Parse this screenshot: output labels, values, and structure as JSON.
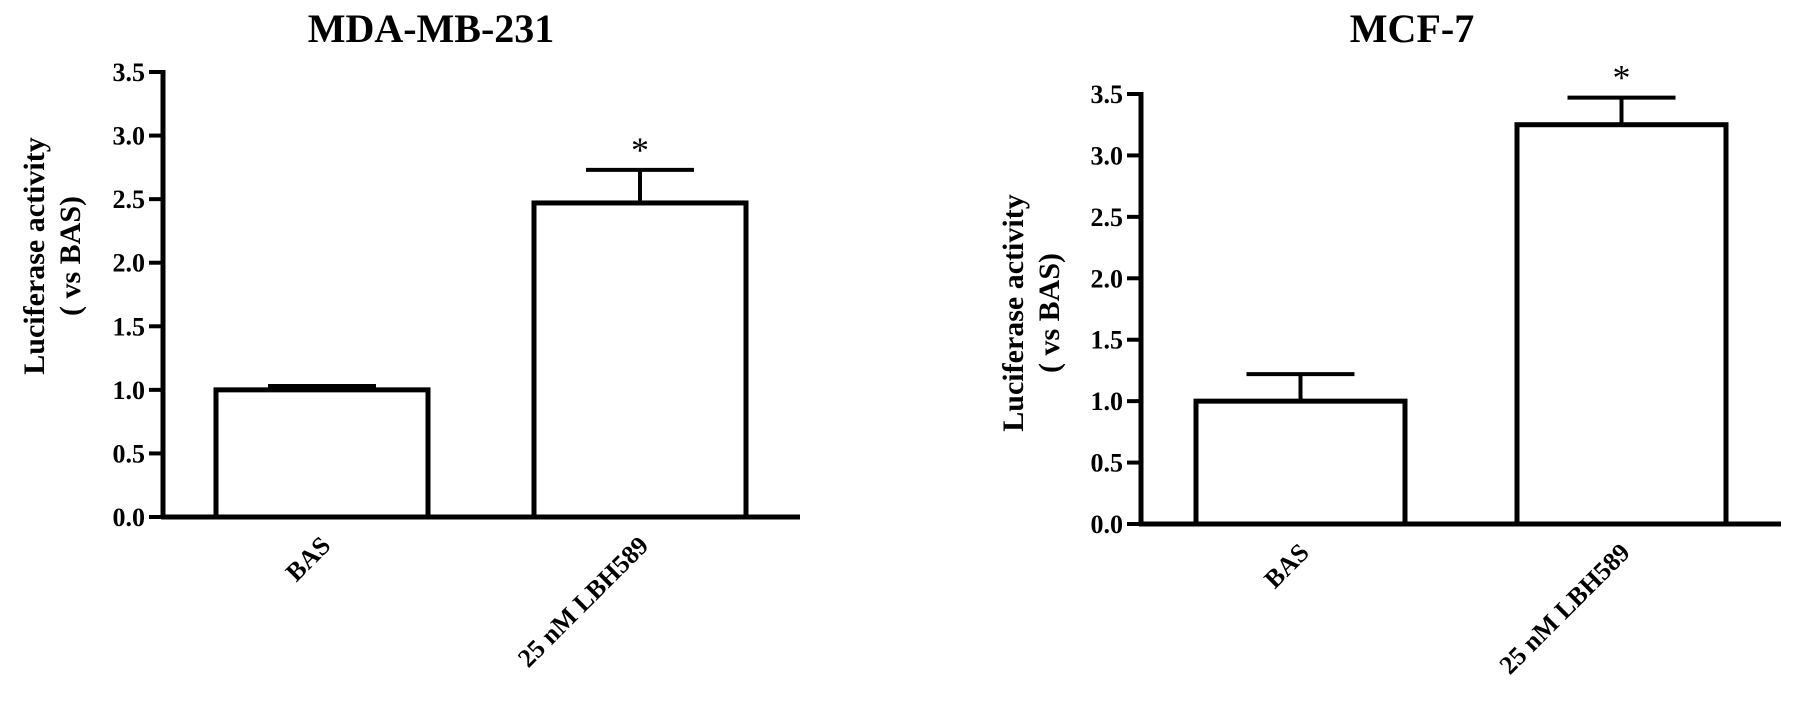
{
  "chart_data": [
    {
      "type": "bar",
      "title": "MDA-MB-231",
      "ylabel_lines": [
        "Luciferase activity",
        "( vs BAS)"
      ],
      "categories": [
        "BAS",
        "25 nM LBH589"
      ],
      "values": [
        1.0,
        2.47
      ],
      "errors": [
        0.03,
        0.26
      ],
      "annotations": [
        "",
        "*"
      ],
      "ylim": [
        0,
        3.5
      ],
      "yticks": [
        "0.0",
        "0.5",
        "1.0",
        "1.5",
        "2.0",
        "2.5",
        "3.0",
        "3.5"
      ],
      "grid": false
    },
    {
      "type": "bar",
      "title": "MCF-7",
      "ylabel_lines": [
        "Luciferase activity",
        "( vs BAS)"
      ],
      "categories": [
        "BAS",
        "25 nM LBH589"
      ],
      "values": [
        1.0,
        3.25
      ],
      "errors": [
        0.22,
        0.22
      ],
      "annotations": [
        "",
        "*"
      ],
      "ylim": [
        0,
        3.5
      ],
      "yticks": [
        "0.0",
        "0.5",
        "1.0",
        "1.5",
        "2.0",
        "2.5",
        "3.0",
        "3.5"
      ],
      "grid": false
    }
  ],
  "colors": {
    "bar_fill": "#ffffff",
    "stroke": "#000000"
  }
}
